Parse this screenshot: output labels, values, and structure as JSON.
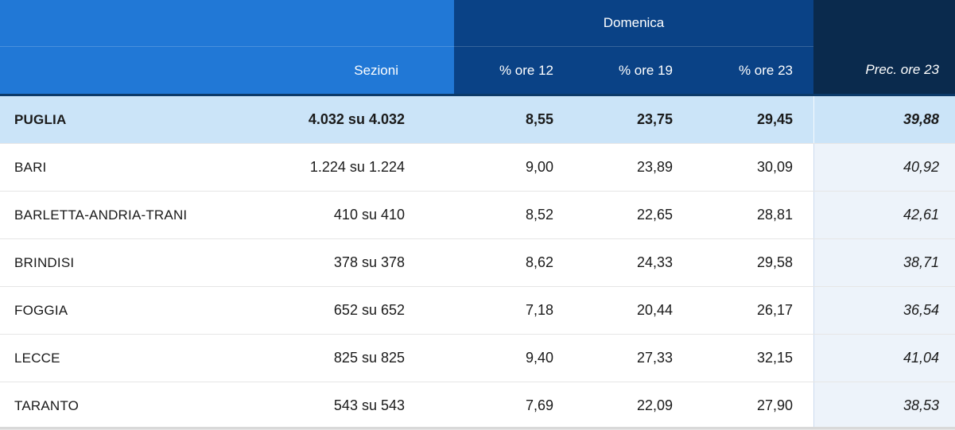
{
  "chart_data": {
    "type": "table",
    "group_header": "Domenica",
    "columns": {
      "sezioni": "Sezioni",
      "ore12": "% ore 12",
      "ore19": "% ore 19",
      "ore23": "% ore 23",
      "prec": "Prec. ore 23"
    },
    "rows": [
      {
        "name": "PUGLIA",
        "sezioni": "4.032 su 4.032",
        "ore12": "8,55",
        "ore19": "23,75",
        "ore23": "29,45",
        "prec": "39,88",
        "is_total": true
      },
      {
        "name": "BARI",
        "sezioni": "1.224 su 1.224",
        "ore12": "9,00",
        "ore19": "23,89",
        "ore23": "30,09",
        "prec": "40,92",
        "is_total": false
      },
      {
        "name": "BARLETTA-ANDRIA-TRANI",
        "sezioni": "410 su 410",
        "ore12": "8,52",
        "ore19": "22,65",
        "ore23": "28,81",
        "prec": "42,61",
        "is_total": false
      },
      {
        "name": "BRINDISI",
        "sezioni": "378 su 378",
        "ore12": "8,62",
        "ore19": "24,33",
        "ore23": "29,58",
        "prec": "38,71",
        "is_total": false
      },
      {
        "name": "FOGGIA",
        "sezioni": "652 su 652",
        "ore12": "7,18",
        "ore19": "20,44",
        "ore23": "26,17",
        "prec": "36,54",
        "is_total": false
      },
      {
        "name": "LECCE",
        "sezioni": "825 su 825",
        "ore12": "9,40",
        "ore19": "27,33",
        "ore23": "32,15",
        "prec": "41,04",
        "is_total": false
      },
      {
        "name": "TARANTO",
        "sezioni": "543 su 543",
        "ore12": "7,69",
        "ore19": "22,09",
        "ore23": "27,90",
        "prec": "38,53",
        "is_total": false
      }
    ]
  },
  "colors": {
    "header_left_blue": "#2178d6",
    "header_group_navy": "#0a4286",
    "header_prec_dark": "#0a2a4d",
    "total_row_bg": "#cbe4f8",
    "prec_column_bg": "#edf3fa",
    "total_row_top_border": "#0c3a69",
    "row_separator": "#e6e6e6",
    "bottom_bar": "#d9d9d9"
  }
}
